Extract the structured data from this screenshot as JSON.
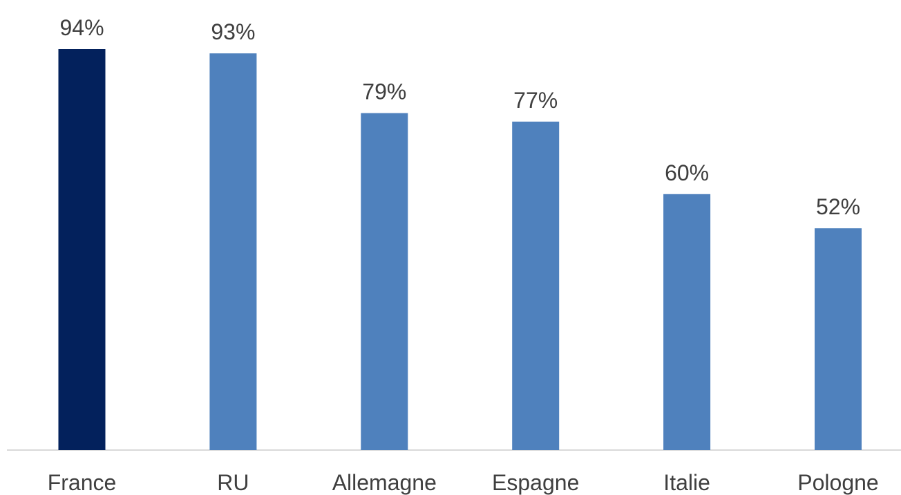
{
  "chart_data": {
    "type": "bar",
    "categories": [
      "France",
      "RU",
      "Allemagne",
      "Espagne",
      "Italie",
      "Pologne"
    ],
    "values": [
      94,
      93,
      79,
      77,
      60,
      52
    ],
    "value_labels": [
      "94%",
      "93%",
      "79%",
      "77%",
      "60%",
      "52%"
    ],
    "unit": "%",
    "ylim": [
      0,
      100
    ],
    "grid": false,
    "legend": "none",
    "colors": {
      "highlight": "#03215C",
      "default": "#4F81BD",
      "axis": "#D9D9D9",
      "text": "#3F3F3F"
    },
    "highlight_index": 0
  }
}
